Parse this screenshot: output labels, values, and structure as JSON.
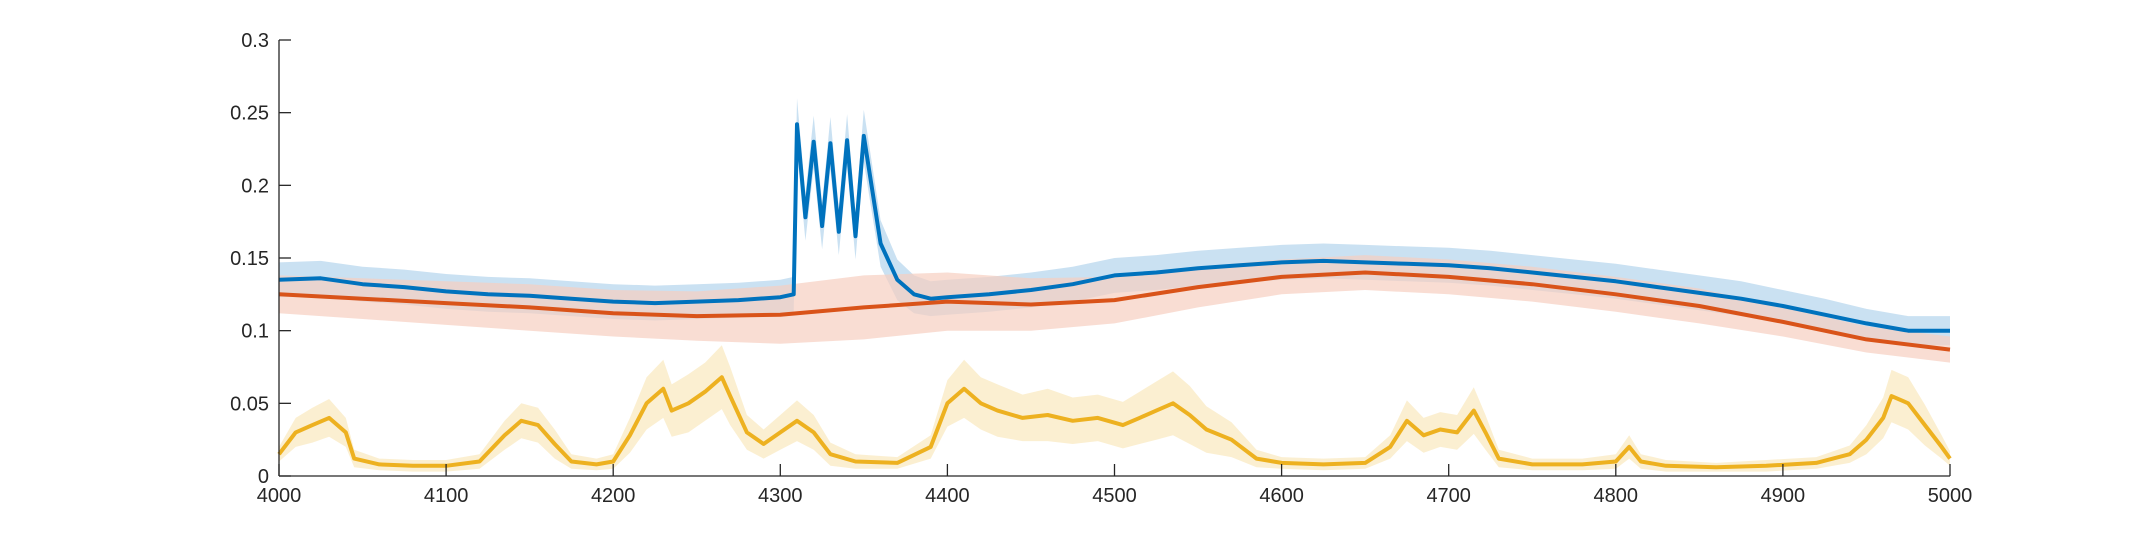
{
  "chart_data": {
    "type": "line",
    "title": "",
    "xlabel": "",
    "ylabel": "",
    "xlim": [
      4000,
      5000
    ],
    "ylim": [
      0,
      0.3
    ],
    "grid": false,
    "legend": "none",
    "x_ticks": [
      "4000",
      "4100",
      "4200",
      "4300",
      "4400",
      "4500",
      "4600",
      "4700",
      "4800",
      "4900",
      "5000"
    ],
    "y_ticks": [
      "0",
      "0.05",
      "0.1",
      "0.15",
      "0.2",
      "0.25",
      "0.3"
    ],
    "series": [
      {
        "color": "#0072BD",
        "band_color": "#b3d4ec",
        "x": [
          4000,
          4025,
          4050,
          4075,
          4100,
          4125,
          4150,
          4175,
          4200,
          4225,
          4250,
          4275,
          4300,
          4308,
          4310,
          4315,
          4320,
          4325,
          4330,
          4335,
          4340,
          4345,
          4350,
          4360,
          4370,
          4380,
          4390,
          4400,
          4425,
          4450,
          4475,
          4500,
          4525,
          4550,
          4575,
          4600,
          4625,
          4650,
          4675,
          4700,
          4725,
          4750,
          4775,
          4800,
          4825,
          4850,
          4875,
          4900,
          4925,
          4950,
          4975,
          5000
        ],
        "y": [
          0.135,
          0.136,
          0.132,
          0.13,
          0.127,
          0.125,
          0.124,
          0.122,
          0.12,
          0.119,
          0.12,
          0.121,
          0.123,
          0.125,
          0.242,
          0.178,
          0.23,
          0.172,
          0.229,
          0.168,
          0.231,
          0.165,
          0.234,
          0.16,
          0.135,
          0.125,
          0.122,
          0.123,
          0.125,
          0.128,
          0.132,
          0.138,
          0.14,
          0.143,
          0.145,
          0.147,
          0.148,
          0.147,
          0.146,
          0.145,
          0.143,
          0.14,
          0.137,
          0.134,
          0.13,
          0.126,
          0.122,
          0.117,
          0.111,
          0.105,
          0.1,
          0.1
        ],
        "band_halfwidth": [
          0.012,
          0.012,
          0.012,
          0.012,
          0.012,
          0.012,
          0.012,
          0.012,
          0.012,
          0.012,
          0.012,
          0.012,
          0.012,
          0.012,
          0.018,
          0.016,
          0.018,
          0.016,
          0.018,
          0.016,
          0.018,
          0.016,
          0.018,
          0.016,
          0.014,
          0.013,
          0.012,
          0.012,
          0.012,
          0.012,
          0.012,
          0.012,
          0.012,
          0.012,
          0.012,
          0.012,
          0.012,
          0.012,
          0.012,
          0.012,
          0.012,
          0.012,
          0.012,
          0.012,
          0.012,
          0.012,
          0.012,
          0.011,
          0.011,
          0.01,
          0.01,
          0.01
        ]
      },
      {
        "color": "#D95319",
        "band_color": "#f6cfc0",
        "x": [
          4000,
          4050,
          4100,
          4150,
          4200,
          4250,
          4300,
          4350,
          4400,
          4450,
          4500,
          4550,
          4600,
          4650,
          4700,
          4750,
          4800,
          4850,
          4900,
          4950,
          5000
        ],
        "y": [
          0.125,
          0.122,
          0.119,
          0.116,
          0.112,
          0.11,
          0.111,
          0.116,
          0.12,
          0.118,
          0.121,
          0.13,
          0.137,
          0.14,
          0.137,
          0.132,
          0.125,
          0.117,
          0.106,
          0.094,
          0.087
        ],
        "band_halfwidth": [
          0.013,
          0.014,
          0.015,
          0.016,
          0.016,
          0.017,
          0.02,
          0.022,
          0.02,
          0.018,
          0.016,
          0.014,
          0.012,
          0.012,
          0.012,
          0.012,
          0.012,
          0.012,
          0.01,
          0.009,
          0.009
        ]
      },
      {
        "color": "#EDB120",
        "band_color": "#fae8bd",
        "x": [
          4000,
          4010,
          4020,
          4030,
          4040,
          4045,
          4060,
          4080,
          4100,
          4120,
          4135,
          4145,
          4155,
          4165,
          4175,
          4190,
          4200,
          4210,
          4220,
          4230,
          4235,
          4245,
          4255,
          4265,
          4270,
          4280,
          4290,
          4300,
          4310,
          4320,
          4330,
          4345,
          4370,
          4390,
          4400,
          4410,
          4420,
          4430,
          4445,
          4460,
          4475,
          4490,
          4505,
          4515,
          4525,
          4535,
          4545,
          4555,
          4570,
          4585,
          4600,
          4625,
          4650,
          4665,
          4675,
          4685,
          4695,
          4705,
          4715,
          4722,
          4730,
          4750,
          4780,
          4800,
          4808,
          4815,
          4830,
          4860,
          4890,
          4920,
          4940,
          4950,
          4960,
          4965,
          4975,
          4985,
          4995,
          5000
        ],
        "y": [
          0.015,
          0.03,
          0.035,
          0.04,
          0.03,
          0.012,
          0.008,
          0.007,
          0.007,
          0.01,
          0.028,
          0.038,
          0.035,
          0.022,
          0.01,
          0.008,
          0.01,
          0.028,
          0.05,
          0.06,
          0.045,
          0.05,
          0.058,
          0.068,
          0.055,
          0.03,
          0.022,
          0.03,
          0.038,
          0.03,
          0.015,
          0.01,
          0.009,
          0.02,
          0.05,
          0.06,
          0.05,
          0.045,
          0.04,
          0.042,
          0.038,
          0.04,
          0.035,
          0.04,
          0.045,
          0.05,
          0.042,
          0.032,
          0.025,
          0.012,
          0.009,
          0.008,
          0.009,
          0.02,
          0.038,
          0.028,
          0.032,
          0.03,
          0.045,
          0.03,
          0.012,
          0.008,
          0.008,
          0.01,
          0.02,
          0.01,
          0.007,
          0.006,
          0.007,
          0.009,
          0.015,
          0.025,
          0.04,
          0.055,
          0.05,
          0.035,
          0.02,
          0.012
        ],
        "band_halfwidth": [
          0.005,
          0.01,
          0.012,
          0.013,
          0.01,
          0.006,
          0.004,
          0.004,
          0.004,
          0.005,
          0.01,
          0.012,
          0.012,
          0.01,
          0.005,
          0.004,
          0.005,
          0.012,
          0.018,
          0.02,
          0.018,
          0.02,
          0.02,
          0.022,
          0.02,
          0.012,
          0.01,
          0.012,
          0.014,
          0.012,
          0.008,
          0.005,
          0.004,
          0.008,
          0.016,
          0.02,
          0.018,
          0.018,
          0.016,
          0.018,
          0.016,
          0.016,
          0.016,
          0.018,
          0.02,
          0.022,
          0.02,
          0.016,
          0.012,
          0.006,
          0.004,
          0.004,
          0.004,
          0.008,
          0.014,
          0.012,
          0.012,
          0.012,
          0.016,
          0.012,
          0.006,
          0.004,
          0.004,
          0.005,
          0.008,
          0.005,
          0.004,
          0.003,
          0.004,
          0.004,
          0.006,
          0.01,
          0.014,
          0.018,
          0.018,
          0.014,
          0.008,
          0.005
        ]
      }
    ]
  }
}
